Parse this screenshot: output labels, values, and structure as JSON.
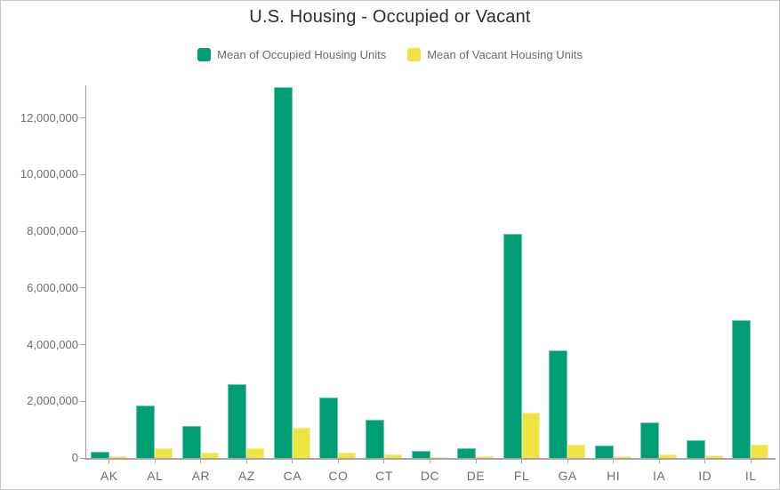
{
  "title": "U.S. Housing - Occupied or Vacant",
  "chart_data": {
    "type": "bar",
    "title": "U.S. Housing - Occupied or Vacant",
    "xlabel": "",
    "ylabel": "",
    "grid": false,
    "legend_position": "top",
    "ylim": [
      0,
      13150000
    ],
    "yticks": [
      0,
      2000000,
      4000000,
      6000000,
      8000000,
      10000000,
      12000000
    ],
    "ytick_labels": [
      "0",
      "2,000,000",
      "4,000,000",
      "6,000,000",
      "8,000,000",
      "10,000,000",
      "12,000,000"
    ],
    "categories": [
      "AK",
      "AL",
      "AR",
      "AZ",
      "CA",
      "CO",
      "CT",
      "DC",
      "DE",
      "FL",
      "GA",
      "HI",
      "IA",
      "ID",
      "IL"
    ],
    "series": [
      {
        "name": "Mean of Occupied Housing Units",
        "color": "#009e73",
        "values": [
          210000,
          1860000,
          1120000,
          2590000,
          13100000,
          2120000,
          1360000,
          250000,
          350000,
          7900000,
          3800000,
          440000,
          1250000,
          620000,
          4860000
        ]
      },
      {
        "name": "Mean of Vacant Housing Units",
        "color": "#f0e442",
        "values": [
          50000,
          360000,
          180000,
          360000,
          1080000,
          190000,
          130000,
          30000,
          60000,
          1600000,
          470000,
          60000,
          120000,
          80000,
          460000
        ]
      }
    ]
  },
  "colors": {
    "occupied": "#009e73",
    "vacant": "#f0e442",
    "axis_line": "#9f9f9f",
    "axis_text": "#6e6e6e",
    "title_text": "#2d2d2d"
  }
}
